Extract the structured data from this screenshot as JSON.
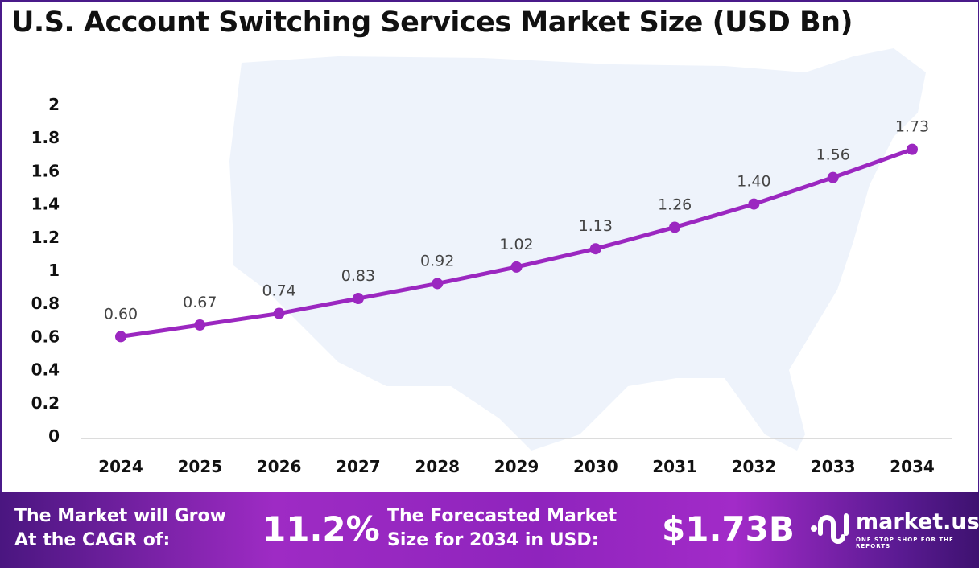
{
  "title": "U.S. Account Switching Services Market Size (USD Bn)",
  "chart_data": {
    "type": "line",
    "title": "U.S. Account Switching Services Market Size (USD Bn)",
    "categories": [
      "2024",
      "2025",
      "2026",
      "2027",
      "2028",
      "2029",
      "2030",
      "2031",
      "2032",
      "2033",
      "2034"
    ],
    "values": [
      0.6,
      0.67,
      0.74,
      0.83,
      0.92,
      1.02,
      1.13,
      1.26,
      1.4,
      1.56,
      1.73
    ],
    "data_labels": [
      "0.60",
      "0.67",
      "0.74",
      "0.83",
      "0.92",
      "1.02",
      "1.13",
      "1.26",
      "1.40",
      "1.56",
      "1.73"
    ],
    "y_ticks": [
      "0",
      "0.2",
      "0.4",
      "0.6",
      "0.8",
      "1",
      "1.2",
      "1.4",
      "1.6",
      "1.8",
      "2"
    ],
    "ylim": [
      0,
      2
    ],
    "grid": false,
    "line_color": "#9b27c0",
    "background": "US map silhouette, light blue"
  },
  "footer": {
    "cagr_label_1": "The Market will Grow",
    "cagr_label_2": "At the CAGR of:",
    "cagr_value": "11.2%",
    "forecast_label_1": "The Forecasted Market",
    "forecast_label_2": "Size for 2034 in USD:",
    "forecast_value": "$1.73B",
    "logo_name": "market.us",
    "logo_tagline": "ONE STOP SHOP FOR THE REPORTS"
  }
}
